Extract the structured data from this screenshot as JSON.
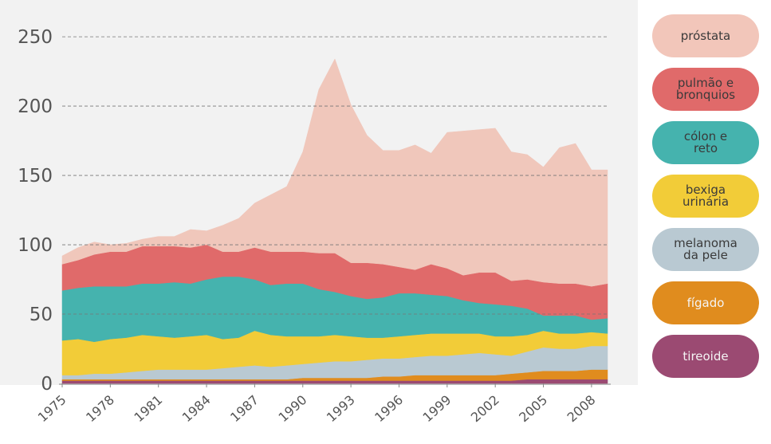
{
  "chart_data": {
    "type": "area",
    "stacked": true,
    "x": [
      1975,
      1976,
      1977,
      1978,
      1979,
      1980,
      1981,
      1982,
      1983,
      1984,
      1985,
      1986,
      1987,
      1988,
      1989,
      1990,
      1991,
      1992,
      1993,
      1994,
      1995,
      1996,
      1997,
      1998,
      1999,
      2000,
      2001,
      2002,
      2003,
      2004,
      2005,
      2006,
      2007,
      2008,
      2009
    ],
    "x_tick_labels": [
      "1975",
      "1978",
      "1981",
      "1984",
      "1987",
      "1990",
      "1993",
      "1996",
      "1999",
      "2002",
      "2005",
      "2008"
    ],
    "x_ticks": [
      1975,
      1978,
      1981,
      1984,
      1987,
      1990,
      1993,
      1996,
      1999,
      2002,
      2005,
      2008
    ],
    "y_tick_labels": [
      "0",
      "50",
      "100",
      "150",
      "200",
      "250"
    ],
    "y_ticks": [
      0,
      50,
      100,
      150,
      200,
      250
    ],
    "ylim": [
      0,
      265
    ],
    "grid": "horizontal-dashed",
    "legend_position": "right",
    "series": [
      {
        "name": "tireoide",
        "color": "#9b4a72",
        "values": [
          2,
          2,
          2,
          2,
          2,
          2,
          2,
          2,
          2,
          2,
          2,
          2,
          2,
          2,
          2,
          2,
          2,
          2,
          2,
          2,
          2,
          2,
          2,
          2,
          2,
          2,
          2,
          2,
          2,
          3,
          3,
          3,
          3,
          3,
          3
        ]
      },
      {
        "name": "fígado",
        "color": "#e08c1e",
        "values": [
          1,
          1,
          1,
          1,
          1,
          1,
          1,
          1,
          1,
          1,
          1,
          1,
          1,
          1,
          1,
          2,
          2,
          2,
          2,
          2,
          3,
          3,
          4,
          4,
          4,
          4,
          4,
          4,
          5,
          5,
          6,
          6,
          6,
          7,
          7
        ]
      },
      {
        "name": "melanoma da pele",
        "color": "#b9c9d2",
        "values": [
          3,
          3,
          4,
          4,
          5,
          6,
          7,
          7,
          7,
          7,
          8,
          9,
          10,
          9,
          10,
          10,
          11,
          12,
          12,
          13,
          13,
          13,
          13,
          14,
          14,
          15,
          16,
          15,
          13,
          15,
          17,
          16,
          16,
          17,
          17
        ]
      },
      {
        "name": "bexiga urinária",
        "color": "#f2cc38",
        "values": [
          25,
          26,
          23,
          25,
          25,
          26,
          24,
          23,
          24,
          25,
          21,
          21,
          25,
          23,
          21,
          20,
          19,
          19,
          18,
          16,
          15,
          16,
          16,
          16,
          16,
          15,
          14,
          13,
          14,
          12,
          12,
          11,
          11,
          10,
          9
        ]
      },
      {
        "name": "cólon e reto",
        "color": "#45b3ae",
        "values": [
          36,
          37,
          40,
          38,
          37,
          37,
          38,
          40,
          38,
          40,
          45,
          44,
          37,
          36,
          38,
          38,
          34,
          31,
          29,
          28,
          29,
          31,
          30,
          28,
          27,
          24,
          22,
          23,
          22,
          19,
          11,
          13,
          13,
          9,
          11
        ]
      },
      {
        "name": "pulmão e bronquios",
        "color": "#e06a6a",
        "values": [
          19,
          20,
          23,
          25,
          25,
          27,
          27,
          26,
          26,
          25,
          18,
          18,
          23,
          24,
          23,
          23,
          26,
          28,
          24,
          26,
          24,
          19,
          17,
          22,
          20,
          18,
          22,
          23,
          18,
          21,
          24,
          23,
          23,
          24,
          25
        ]
      },
      {
        "name": "próstata",
        "color": "#f0c7bb",
        "values": [
          6,
          9,
          9,
          5,
          6,
          5,
          7,
          7,
          13,
          10,
          19,
          24,
          32,
          41,
          47,
          72,
          118,
          140,
          114,
          92,
          82,
          84,
          90,
          80,
          98,
          104,
          103,
          104,
          93,
          90,
          83,
          98,
          101,
          84,
          82
        ]
      }
    ]
  },
  "legend": [
    {
      "label": "próstata",
      "color": "#f2c6ba"
    },
    {
      "label": "pulmão e\nbronquios",
      "color": "#e06a6a"
    },
    {
      "label": "cólon e\nreto",
      "color": "#45b3ae"
    },
    {
      "label": "bexiga\nurinária",
      "color": "#f2cc38"
    },
    {
      "label": "melanoma\nda pele",
      "color": "#b9c9d2"
    },
    {
      "label": "fígado",
      "color": "#e08c1e"
    },
    {
      "label": "tireoide",
      "color": "#9b4a72"
    }
  ]
}
